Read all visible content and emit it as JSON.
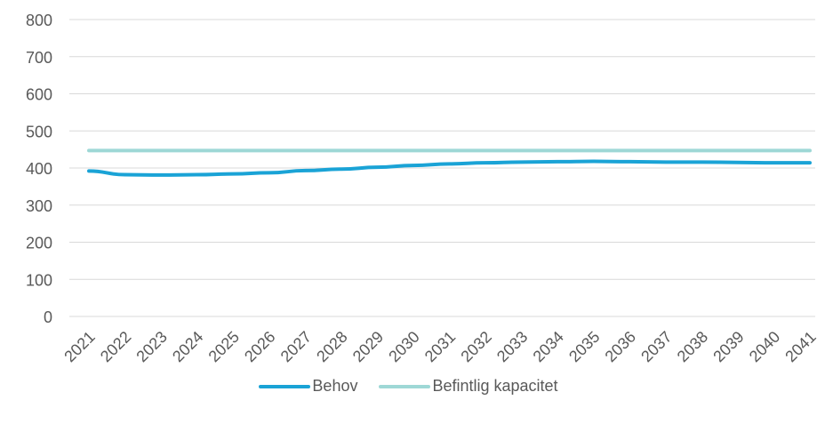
{
  "chart_data": {
    "type": "line",
    "x": [
      "2021",
      "2022",
      "2023",
      "2024",
      "2025",
      "2026",
      "2027",
      "2028",
      "2029",
      "2030",
      "2031",
      "2032",
      "2033",
      "2034",
      "2035",
      "2036",
      "2037",
      "2038",
      "2039",
      "2040",
      "2041"
    ],
    "y_ticks": [
      "0",
      "100",
      "200",
      "300",
      "400",
      "500",
      "600",
      "700",
      "800"
    ],
    "ylim": [
      0,
      800
    ],
    "grid": true,
    "legend_position": "bottom",
    "series": [
      {
        "name": "Behov",
        "color": "#1aa3d6",
        "values": [
          392,
          382,
          381,
          382,
          384,
          387,
          393,
          397,
          402,
          407,
          411,
          414,
          416,
          417,
          418,
          417,
          416,
          416,
          415,
          414,
          414
        ]
      },
      {
        "name": "Befintlig kapacitet",
        "color": "#9ed8d6",
        "values": [
          447,
          447,
          447,
          447,
          447,
          447,
          447,
          447,
          447,
          447,
          447,
          447,
          447,
          447,
          447,
          447,
          447,
          447,
          447,
          447,
          447
        ]
      }
    ]
  }
}
